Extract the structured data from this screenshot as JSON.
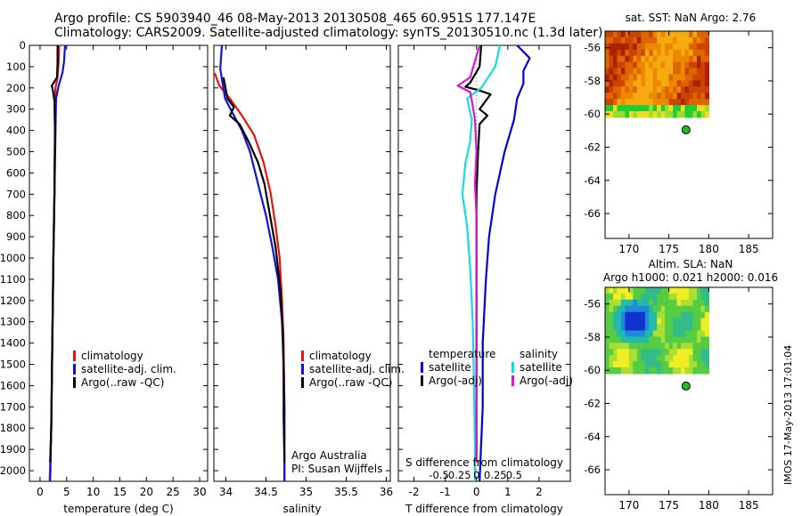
{
  "header": {
    "line1": "Argo profile: CS 5903940_46 08-May-2013 20130508_465 60.951S 177.147E",
    "line2": "Climatology: CARS2009. Satellite-adjusted climatology: synTS_20130510.nc (1.3d later)"
  },
  "side_stamp": "IMOS 17-May-2013 17:01:04",
  "chart_data": [
    {
      "type": "line",
      "id": "temperature",
      "xlabel": "temperature (deg C)",
      "ylabel": "",
      "xlim": [
        -2,
        31.5
      ],
      "ylim": [
        2050,
        0
      ],
      "xticks": [
        0,
        5,
        10,
        15,
        20,
        25,
        30
      ],
      "yticks": [
        0,
        100,
        200,
        300,
        400,
        500,
        600,
        700,
        800,
        900,
        1000,
        1100,
        1200,
        1300,
        1400,
        1500,
        1600,
        1700,
        1800,
        1900,
        2000
      ],
      "legend": {
        "placement": "bottom-center",
        "entries": [
          "climatology",
          "satellite-adj. clim.",
          "Argo(..raw -QC)"
        ]
      },
      "series": [
        {
          "name": "climatology",
          "color": "#ee1111",
          "points": [
            [
              3.6,
              0
            ],
            [
              3.5,
              80
            ],
            [
              3.3,
              150
            ],
            [
              2.9,
              200
            ],
            [
              2.8,
              260
            ],
            [
              2.8,
              400
            ],
            [
              2.7,
              700
            ],
            [
              2.5,
              1000
            ],
            [
              2.3,
              1400
            ],
            [
              2.1,
              1800
            ],
            [
              1.8,
              2050
            ]
          ]
        },
        {
          "name": "satellite-adj. clim.",
          "color": "#1111dd",
          "points": [
            [
              4.7,
              0
            ],
            [
              4.5,
              80
            ],
            [
              4.2,
              130
            ],
            [
              3.5,
              190
            ],
            [
              3.0,
              250
            ],
            [
              2.9,
              400
            ],
            [
              2.7,
              700
            ],
            [
              2.5,
              1000
            ],
            [
              2.3,
              1400
            ],
            [
              2.1,
              1800
            ],
            [
              1.9,
              2050
            ]
          ]
        },
        {
          "name": "Argo(..raw -QC)",
          "color": "#000000",
          "points": [
            [
              3.3,
              0
            ],
            [
              3.3,
              80
            ],
            [
              3.2,
              150
            ],
            [
              2.2,
              190
            ],
            [
              2.4,
              210
            ],
            [
              2.7,
              260
            ],
            [
              2.8,
              400
            ],
            [
              2.7,
              700
            ],
            [
              2.5,
              1000
            ],
            [
              2.3,
              1400
            ],
            [
              2.1,
              1800
            ],
            [
              1.9,
              1960
            ]
          ]
        }
      ]
    },
    {
      "type": "line",
      "id": "salinity",
      "xlabel": "salinity",
      "xlim": [
        33.85,
        36.05
      ],
      "ylim": [
        2050,
        0
      ],
      "xticks": [
        34,
        34.5,
        35,
        35.5,
        36
      ],
      "legend": {
        "placement": "bottom-right",
        "entries": [
          "climatology",
          "satellite-adj. clim.",
          "Argo(..raw -QC)"
        ]
      },
      "annotations": [
        "Argo Australia",
        "PI: Susan Wijffels"
      ],
      "series": [
        {
          "name": "climatology",
          "color": "#ee1111",
          "points": [
            [
              33.86,
              130
            ],
            [
              33.92,
              190
            ],
            [
              34.05,
              250
            ],
            [
              34.2,
              330
            ],
            [
              34.35,
              420
            ],
            [
              34.47,
              550
            ],
            [
              34.56,
              700
            ],
            [
              34.62,
              850
            ],
            [
              34.67,
              1000
            ],
            [
              34.7,
              1200
            ],
            [
              34.72,
              1400
            ],
            [
              34.73,
              1700
            ],
            [
              34.73,
              2050
            ]
          ]
        },
        {
          "name": "satellite-adj. clim.",
          "color": "#1111dd",
          "points": [
            [
              33.95,
              0
            ],
            [
              33.93,
              110
            ],
            [
              33.99,
              250
            ],
            [
              34.1,
              330
            ],
            [
              34.2,
              400
            ],
            [
              34.3,
              500
            ],
            [
              34.4,
              650
            ],
            [
              34.5,
              800
            ],
            [
              34.58,
              950
            ],
            [
              34.65,
              1100
            ],
            [
              34.7,
              1300
            ],
            [
              34.72,
              1500
            ],
            [
              34.73,
              1700
            ],
            [
              34.73,
              2050
            ]
          ]
        },
        {
          "name": "Argo(..raw -QC)",
          "color": "#000000",
          "points": [
            [
              33.97,
              150
            ],
            [
              34.02,
              250
            ],
            [
              34.1,
              290
            ],
            [
              34.05,
              330
            ],
            [
              34.17,
              370
            ],
            [
              34.28,
              450
            ],
            [
              34.4,
              550
            ],
            [
              34.48,
              650
            ],
            [
              34.55,
              800
            ],
            [
              34.62,
              950
            ],
            [
              34.68,
              1150
            ],
            [
              34.71,
              1350
            ],
            [
              34.72,
              1550
            ],
            [
              34.72,
              1750
            ],
            [
              34.73,
              1960
            ]
          ]
        }
      ]
    },
    {
      "type": "line",
      "id": "difference",
      "xlabel": "T difference from climatology",
      "xlabel_top": "S difference from climatology",
      "xlim": [
        -2.5,
        3
      ],
      "ylim": [
        2050,
        0
      ],
      "xticks": [
        -2,
        -1,
        0,
        1,
        2
      ],
      "top_ticks": [
        "-0.5",
        "-0.25",
        "0",
        "0.25",
        "0.5"
      ],
      "legend": {
        "placement": "bottom",
        "titles": [
          "temperature",
          "salinity"
        ],
        "entries": [
          "satellite",
          "Argo(-adj)",
          "satellite",
          "Argo(-adj)"
        ]
      },
      "series": [
        {
          "name": "T satellite",
          "color": "#0000dd",
          "points": [
            [
              1.3,
              0
            ],
            [
              1.7,
              60
            ],
            [
              1.5,
              120
            ],
            [
              1.5,
              180
            ],
            [
              1.3,
              250
            ],
            [
              1.2,
              350
            ],
            [
              0.9,
              500
            ],
            [
              0.6,
              700
            ],
            [
              0.4,
              900
            ],
            [
              0.3,
              1100
            ],
            [
              0.2,
              1400
            ],
            [
              0.2,
              1700
            ],
            [
              0.1,
              2050
            ]
          ]
        },
        {
          "name": "T Argo(-adj)",
          "color": "#000000",
          "points": [
            [
              0.15,
              0
            ],
            [
              0.1,
              100
            ],
            [
              -0.2,
              175
            ],
            [
              -0.35,
              195
            ],
            [
              0.05,
              210
            ],
            [
              0.45,
              230
            ],
            [
              0.3,
              260
            ],
            [
              0.1,
              300
            ],
            [
              0.35,
              330
            ],
            [
              0.1,
              370
            ],
            [
              0.05,
              500
            ],
            [
              0.0,
              700
            ],
            [
              0.0,
              1000
            ],
            [
              0.0,
              1400
            ],
            [
              0.0,
              1800
            ],
            [
              0.0,
              1960
            ]
          ]
        },
        {
          "name": "S satellite",
          "color": "#11dddd",
          "points": [
            [
              0.75,
              0
            ],
            [
              0.6,
              100
            ],
            [
              0.15,
              200
            ],
            [
              -0.3,
              250
            ],
            [
              -0.15,
              350
            ],
            [
              -0.2,
              450
            ],
            [
              -0.35,
              550
            ],
            [
              -0.45,
              700
            ],
            [
              -0.3,
              850
            ],
            [
              -0.2,
              1050
            ],
            [
              -0.12,
              1300
            ],
            [
              -0.08,
              1600
            ],
            [
              -0.05,
              1900
            ],
            [
              -0.05,
              2050
            ]
          ]
        },
        {
          "name": "S Argo(-adj)",
          "color": "#dd11dd",
          "points": [
            [
              0.1,
              0
            ],
            [
              -0.2,
              150
            ],
            [
              -0.6,
              190
            ],
            [
              -0.2,
              220
            ],
            [
              -0.15,
              260
            ],
            [
              -0.05,
              350
            ],
            [
              0.0,
              500
            ],
            [
              -0.05,
              650
            ],
            [
              0.0,
              800
            ],
            [
              0.0,
              1000
            ],
            [
              0.0,
              1300
            ],
            [
              0.0,
              1600
            ],
            [
              0.0,
              1960
            ]
          ]
        }
      ]
    },
    {
      "type": "heatmap",
      "id": "sst_map",
      "title": "sat. SST: NaN Argo: 2.76",
      "xlim": [
        167,
        188
      ],
      "ylim": [
        -67.5,
        -55
      ],
      "xticks": [
        170,
        175,
        180,
        185
      ],
      "yticks": [
        -56,
        -58,
        -60,
        -62,
        -64,
        -66
      ],
      "argo_position": [
        177.147,
        -60.951
      ]
    },
    {
      "type": "heatmap",
      "id": "sla_map",
      "title": "Altim. SLA: NaN",
      "subtitle": "Argo h1000: 0.021 h2000: 0.016",
      "xlim": [
        167,
        188
      ],
      "ylim": [
        -67.5,
        -55
      ],
      "xticks": [
        170,
        175,
        180,
        185
      ],
      "yticks": [
        -56,
        -58,
        -60,
        -62,
        -64,
        -66
      ],
      "argo_position": [
        177.147,
        -60.951
      ]
    }
  ]
}
